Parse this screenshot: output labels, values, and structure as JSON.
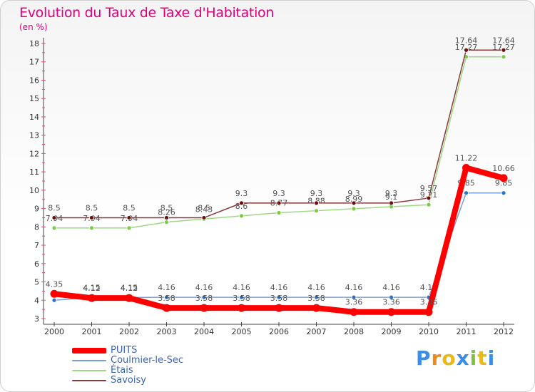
{
  "title": "Evolution du Taux de Taxe d'Habitation",
  "unit_label": "(en %)",
  "logo": {
    "text": "Proxiti",
    "letters": [
      "P",
      "r",
      "o",
      "x",
      "i",
      "t",
      "i"
    ],
    "colors": [
      "#3a8ee8",
      "#f08a1c",
      "#e8b81c",
      "#3a8ee8",
      "#7fc242",
      "#e8b81c",
      "#3a8ee8"
    ]
  },
  "chart_data": {
    "type": "line",
    "title": "Evolution du Taux de Taxe d'Habitation",
    "ylabel": "(en %)",
    "x": [
      "2000",
      "2001",
      "2002",
      "2003",
      "2004",
      "2005",
      "2006",
      "2007",
      "2008",
      "2009",
      "2010",
      "2011",
      "2012"
    ],
    "ylim": [
      3,
      18
    ],
    "yticks": [
      "3",
      "4",
      "5",
      "6",
      "7",
      "8",
      "9",
      "10",
      "11",
      "12",
      "13",
      "14",
      "15",
      "16",
      "17",
      "18"
    ],
    "grid": false,
    "legend_position": "bottom-left",
    "series": [
      {
        "name": "Coulmier-le-Sec",
        "color": "#7a9fd4",
        "marker": "#2f72c4",
        "values": [
          4.0,
          4.15,
          4.15,
          4.16,
          4.16,
          4.16,
          4.16,
          4.16,
          4.16,
          4.16,
          4.16,
          9.85,
          9.85
        ],
        "labels": [
          "",
          "4.15",
          "4.15",
          "4.16",
          "4.16",
          "4.16",
          "4.16",
          "4.16",
          "4.16",
          "4.16",
          "4.16",
          "9.85",
          "9.85"
        ]
      },
      {
        "name": "Étais",
        "color": "#9fd884",
        "marker": "#7ccb44",
        "values": [
          7.94,
          7.94,
          7.94,
          8.26,
          8.43,
          8.6,
          8.77,
          8.88,
          8.99,
          9.1,
          9.21,
          17.27,
          17.27
        ],
        "labels": [
          "7.94",
          "7.94",
          "7.94",
          "8.26",
          "8.43",
          "8.6",
          "8.77",
          "8.88",
          "8.99",
          "9.1",
          "9.21",
          "17.27",
          "17.27"
        ]
      },
      {
        "name": "Savoisy",
        "color": "#8a3a3a",
        "marker": "#6b1010",
        "values": [
          8.5,
          8.5,
          8.5,
          8.5,
          8.5,
          9.3,
          9.3,
          9.3,
          9.3,
          9.3,
          9.57,
          17.64,
          17.64
        ],
        "labels": [
          "8.5",
          "8.5",
          "8.5",
          "8.5",
          "8.5",
          "9.3",
          "9.3",
          "9.3",
          "9.3",
          "9.3",
          "9.57",
          "17.64",
          "17.64"
        ]
      },
      {
        "name": "PUITS",
        "color": "#ff0000",
        "marker": "#ff0000",
        "values": [
          4.35,
          4.12,
          4.12,
          3.58,
          3.58,
          3.58,
          3.58,
          3.58,
          3.36,
          3.36,
          3.36,
          11.22,
          10.66
        ],
        "labels": [
          "4.35",
          "4.12",
          "4.12",
          "3.58",
          "3.58",
          "3.58",
          "3.58",
          "3.58",
          "3.36",
          "3.36",
          "3.36",
          "11.22",
          "10.66"
        ]
      }
    ]
  },
  "legend": [
    {
      "name": "PUITS",
      "color": "#ff0000",
      "width": 8
    },
    {
      "name": "Coulmier-le-Sec",
      "color": "#7a9fd4",
      "width": 2
    },
    {
      "name": "Étais",
      "color": "#9fd884",
      "width": 2
    },
    {
      "name": "Savoisy",
      "color": "#8a3a3a",
      "width": 2
    }
  ]
}
